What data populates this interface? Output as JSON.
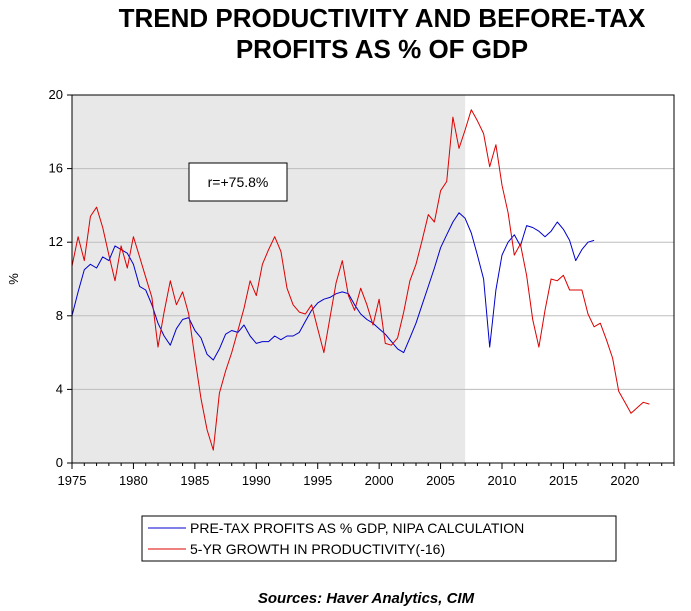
{
  "chart_data": {
    "type": "line",
    "title_lines": [
      "TREND PRODUCTIVITY AND BEFORE-TAX",
      "PROFITS AS % OF GDP"
    ],
    "ylabel": "%",
    "xlabel": "",
    "xlim": [
      1975,
      2024
    ],
    "ylim": [
      0,
      20
    ],
    "x_ticks": [
      1975,
      1980,
      1985,
      1990,
      1995,
      2000,
      2005,
      2010,
      2015,
      2020
    ],
    "y_ticks": [
      0,
      4,
      8,
      12,
      16,
      20
    ],
    "grid": "horizontal",
    "shaded_region": [
      1975,
      2007
    ],
    "annotation": "r=+75.8%",
    "legend_position": "bottom",
    "source": "Sources:  Haver Analytics, CIM",
    "series": [
      {
        "name": "PRE-TAX PROFITS AS % GDP, NIPA CALCULATION",
        "color": "#0000cc",
        "points": [
          [
            1975.0,
            8.0
          ],
          [
            1975.5,
            9.3
          ],
          [
            1976.0,
            10.5
          ],
          [
            1976.5,
            10.8
          ],
          [
            1977.0,
            10.6
          ],
          [
            1977.5,
            11.2
          ],
          [
            1978.0,
            11.0
          ],
          [
            1978.5,
            11.8
          ],
          [
            1979.0,
            11.6
          ],
          [
            1979.5,
            11.4
          ],
          [
            1980.0,
            10.8
          ],
          [
            1980.5,
            9.6
          ],
          [
            1981.0,
            9.4
          ],
          [
            1981.5,
            8.6
          ],
          [
            1982.0,
            7.6
          ],
          [
            1982.5,
            6.9
          ],
          [
            1983.0,
            6.4
          ],
          [
            1983.5,
            7.3
          ],
          [
            1984.0,
            7.8
          ],
          [
            1984.5,
            7.9
          ],
          [
            1985.0,
            7.2
          ],
          [
            1985.5,
            6.8
          ],
          [
            1986.0,
            5.9
          ],
          [
            1986.5,
            5.6
          ],
          [
            1987.0,
            6.2
          ],
          [
            1987.5,
            7.0
          ],
          [
            1988.0,
            7.2
          ],
          [
            1988.5,
            7.1
          ],
          [
            1989.0,
            7.5
          ],
          [
            1989.5,
            6.9
          ],
          [
            1990.0,
            6.5
          ],
          [
            1990.5,
            6.6
          ],
          [
            1991.0,
            6.6
          ],
          [
            1991.5,
            6.9
          ],
          [
            1992.0,
            6.7
          ],
          [
            1992.5,
            6.9
          ],
          [
            1993.0,
            6.9
          ],
          [
            1993.5,
            7.1
          ],
          [
            1994.0,
            7.7
          ],
          [
            1994.5,
            8.3
          ],
          [
            1995.0,
            8.7
          ],
          [
            1995.5,
            8.9
          ],
          [
            1996.0,
            9.0
          ],
          [
            1996.5,
            9.2
          ],
          [
            1997.0,
            9.3
          ],
          [
            1997.5,
            9.2
          ],
          [
            1998.0,
            8.6
          ],
          [
            1998.5,
            8.1
          ],
          [
            1999.0,
            7.8
          ],
          [
            1999.5,
            7.6
          ],
          [
            2000.0,
            7.3
          ],
          [
            2000.5,
            7.0
          ],
          [
            2001.0,
            6.6
          ],
          [
            2001.5,
            6.2
          ],
          [
            2002.0,
            6.0
          ],
          [
            2002.5,
            6.8
          ],
          [
            2003.0,
            7.6
          ],
          [
            2003.5,
            8.6
          ],
          [
            2004.0,
            9.6
          ],
          [
            2004.5,
            10.6
          ],
          [
            2005.0,
            11.7
          ],
          [
            2005.5,
            12.4
          ],
          [
            2006.0,
            13.1
          ],
          [
            2006.5,
            13.6
          ],
          [
            2007.0,
            13.3
          ],
          [
            2007.5,
            12.5
          ],
          [
            2008.0,
            11.3
          ],
          [
            2008.5,
            10.0
          ],
          [
            2009.0,
            6.3
          ],
          [
            2009.5,
            9.4
          ],
          [
            2010.0,
            11.3
          ],
          [
            2010.5,
            12.0
          ],
          [
            2011.0,
            12.4
          ],
          [
            2011.5,
            11.8
          ],
          [
            2012.0,
            12.9
          ],
          [
            2012.5,
            12.8
          ],
          [
            2013.0,
            12.6
          ],
          [
            2013.5,
            12.3
          ],
          [
            2014.0,
            12.6
          ],
          [
            2014.5,
            13.1
          ],
          [
            2015.0,
            12.7
          ],
          [
            2015.5,
            12.1
          ],
          [
            2016.0,
            11.0
          ],
          [
            2016.5,
            11.6
          ],
          [
            2017.0,
            12.0
          ],
          [
            2017.5,
            12.1
          ]
        ]
      },
      {
        "name": "5-YR GROWTH IN PRODUCTIVITY(-16)",
        "color": "#dd0000",
        "points": [
          [
            1975.0,
            10.7
          ],
          [
            1975.5,
            12.3
          ],
          [
            1976.0,
            11.0
          ],
          [
            1976.5,
            13.4
          ],
          [
            1977.0,
            13.9
          ],
          [
            1977.5,
            12.8
          ],
          [
            1978.0,
            11.3
          ],
          [
            1978.5,
            9.9
          ],
          [
            1979.0,
            11.8
          ],
          [
            1979.5,
            10.6
          ],
          [
            1980.0,
            12.3
          ],
          [
            1980.5,
            11.2
          ],
          [
            1981.0,
            10.1
          ],
          [
            1981.5,
            9.0
          ],
          [
            1982.0,
            6.3
          ],
          [
            1982.5,
            8.2
          ],
          [
            1983.0,
            9.9
          ],
          [
            1983.5,
            8.6
          ],
          [
            1984.0,
            9.3
          ],
          [
            1984.5,
            8.1
          ],
          [
            1985.0,
            5.7
          ],
          [
            1985.5,
            3.5
          ],
          [
            1986.0,
            1.8
          ],
          [
            1986.5,
            0.7
          ],
          [
            1987.0,
            3.8
          ],
          [
            1987.5,
            5.0
          ],
          [
            1988.0,
            6.0
          ],
          [
            1988.5,
            7.2
          ],
          [
            1989.0,
            8.4
          ],
          [
            1989.5,
            9.9
          ],
          [
            1990.0,
            9.1
          ],
          [
            1990.5,
            10.8
          ],
          [
            1991.0,
            11.6
          ],
          [
            1991.5,
            12.3
          ],
          [
            1992.0,
            11.5
          ],
          [
            1992.5,
            9.5
          ],
          [
            1993.0,
            8.6
          ],
          [
            1993.5,
            8.2
          ],
          [
            1994.0,
            8.1
          ],
          [
            1994.5,
            8.6
          ],
          [
            1995.0,
            7.3
          ],
          [
            1995.5,
            6.0
          ],
          [
            1996.0,
            7.9
          ],
          [
            1996.5,
            9.8
          ],
          [
            1997.0,
            11.0
          ],
          [
            1997.5,
            9.1
          ],
          [
            1998.0,
            8.3
          ],
          [
            1998.5,
            9.5
          ],
          [
            1999.0,
            8.6
          ],
          [
            1999.5,
            7.5
          ],
          [
            2000.0,
            8.9
          ],
          [
            2000.5,
            6.5
          ],
          [
            2001.0,
            6.4
          ],
          [
            2001.5,
            6.8
          ],
          [
            2002.0,
            8.2
          ],
          [
            2002.5,
            9.9
          ],
          [
            2003.0,
            10.8
          ],
          [
            2003.5,
            12.1
          ],
          [
            2004.0,
            13.5
          ],
          [
            2004.5,
            13.1
          ],
          [
            2005.0,
            14.8
          ],
          [
            2005.5,
            15.3
          ],
          [
            2006.0,
            18.8
          ],
          [
            2006.5,
            17.1
          ],
          [
            2007.0,
            18.1
          ],
          [
            2007.5,
            19.2
          ],
          [
            2008.0,
            18.6
          ],
          [
            2008.5,
            17.9
          ],
          [
            2009.0,
            16.1
          ],
          [
            2009.5,
            17.3
          ],
          [
            2010.0,
            15.1
          ],
          [
            2010.5,
            13.6
          ],
          [
            2011.0,
            11.3
          ],
          [
            2011.5,
            11.9
          ],
          [
            2012.0,
            10.2
          ],
          [
            2012.5,
            7.8
          ],
          [
            2013.0,
            6.3
          ],
          [
            2013.5,
            8.3
          ],
          [
            2014.0,
            10.0
          ],
          [
            2014.5,
            9.9
          ],
          [
            2015.0,
            10.2
          ],
          [
            2015.5,
            9.4
          ],
          [
            2016.0,
            9.4
          ],
          [
            2016.5,
            9.4
          ],
          [
            2017.0,
            8.1
          ],
          [
            2017.5,
            7.4
          ],
          [
            2018.0,
            7.6
          ],
          [
            2018.5,
            6.7
          ],
          [
            2019.0,
            5.7
          ],
          [
            2019.5,
            3.9
          ],
          [
            2020.0,
            3.3
          ],
          [
            2020.5,
            2.7
          ],
          [
            2021.0,
            3.0
          ],
          [
            2021.5,
            3.3
          ],
          [
            2022.0,
            3.2
          ]
        ]
      }
    ]
  }
}
